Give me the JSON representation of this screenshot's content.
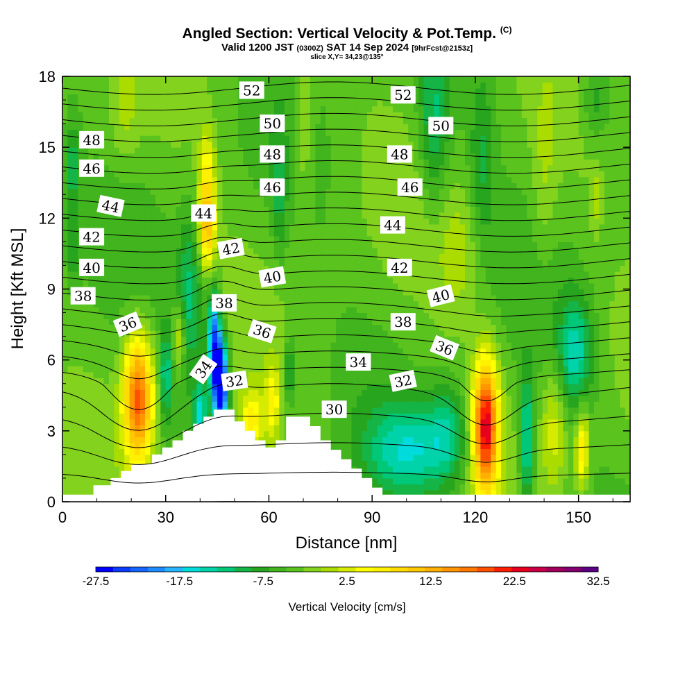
{
  "header": {
    "title": "Angled Section: Vertical Velocity & Pot.Temp.",
    "title_mark": "(C)",
    "valid_prefix": "Valid 1200 JST",
    "valid_utc": "(0300Z)",
    "valid_date": "SAT 14 Sep 2024",
    "valid_fcst": "[9hrFcst@2153z]",
    "slice": "slice X,Y= 34,23@135°"
  },
  "chart_data": {
    "type": "heatmap",
    "xlabel": "Distance [nm]",
    "ylabel": "Height [Kft MSL]",
    "xlim": [
      0,
      165
    ],
    "ylim": [
      0,
      18
    ],
    "xticks": [
      0,
      30,
      60,
      90,
      120,
      150
    ],
    "yticks": [
      0,
      3,
      6,
      9,
      12,
      15,
      18
    ],
    "colorbar": {
      "title": "Vertical Velocity [cm/s]",
      "tick_labels": [
        "-27.5",
        "-17.5",
        "-7.5",
        "2.5",
        "12.5",
        "22.5",
        "32.5"
      ],
      "min": -27.5,
      "max": 32.5,
      "step": 2.5,
      "colors": [
        "#0000ff",
        "#0a3cff",
        "#1466ff",
        "#1e8cff",
        "#28b4ff",
        "#00dcdc",
        "#00d2aa",
        "#00c878",
        "#14b446",
        "#28a51e",
        "#41b41e",
        "#5ac31e",
        "#82d21e",
        "#aadc00",
        "#d7eb00",
        "#ffff00",
        "#fff000",
        "#ffdc00",
        "#ffc800",
        "#ffaf00",
        "#ff9600",
        "#ff7800",
        "#ff5000",
        "#ff1e00",
        "#e6001e",
        "#c80046",
        "#a0005a",
        "#82006e",
        "#5a0082"
      ]
    },
    "terrain_kft": [
      [
        0,
        0.3
      ],
      [
        9,
        0.3
      ],
      [
        9,
        0.7
      ],
      [
        14,
        0.7
      ],
      [
        14,
        1
      ],
      [
        17,
        1
      ],
      [
        17,
        1.3
      ],
      [
        20,
        1.3
      ],
      [
        20,
        1.6
      ],
      [
        26,
        1.6
      ],
      [
        26,
        2
      ],
      [
        29,
        2
      ],
      [
        29,
        2.3
      ],
      [
        32,
        2.3
      ],
      [
        32,
        2.6
      ],
      [
        35,
        2.6
      ],
      [
        35,
        3
      ],
      [
        38,
        3
      ],
      [
        38,
        3.3
      ],
      [
        41,
        3.3
      ],
      [
        41,
        3.6
      ],
      [
        44,
        3.6
      ],
      [
        44,
        3.9
      ],
      [
        50,
        3.9
      ],
      [
        50,
        3.4
      ],
      [
        53,
        3.4
      ],
      [
        53,
        3
      ],
      [
        56,
        3
      ],
      [
        56,
        2.6
      ],
      [
        59,
        2.6
      ],
      [
        59,
        2.3
      ],
      [
        62,
        2.3
      ],
      [
        62,
        2.6
      ],
      [
        65,
        2.6
      ],
      [
        65,
        3
      ],
      [
        65,
        3.6
      ],
      [
        72,
        3.6
      ],
      [
        72,
        3.2
      ],
      [
        75,
        3.2
      ],
      [
        75,
        2.6
      ],
      [
        78,
        2.6
      ],
      [
        78,
        2.2
      ],
      [
        81,
        2.2
      ],
      [
        81,
        1.8
      ],
      [
        84,
        1.8
      ],
      [
        84,
        1.4
      ],
      [
        87,
        1.4
      ],
      [
        87,
        1
      ],
      [
        90,
        1
      ],
      [
        90,
        0.6
      ],
      [
        93,
        0.6
      ],
      [
        93,
        0.3
      ],
      [
        165,
        0.3
      ]
    ],
    "velocity_cells": [
      {
        "x": 22,
        "y": 4.4,
        "sx": 3,
        "sy": 1.9,
        "v": 27
      },
      {
        "x": 123,
        "y": 3.2,
        "sx": 2.6,
        "sy": 2.0,
        "v": 32
      },
      {
        "x": 46,
        "y": 5.0,
        "sx": 1.5,
        "sy": 1.3,
        "v": -34
      },
      {
        "x": 44,
        "y": 6.8,
        "sx": 1.4,
        "sy": 1.5,
        "v": -22
      },
      {
        "x": 42,
        "y": 11.5,
        "sx": 1.7,
        "sy": 1.2,
        "v": 16
      },
      {
        "x": 42,
        "y": 13.8,
        "sx": 1.7,
        "sy": 1.4,
        "v": 11
      },
      {
        "x": 37,
        "y": 8.5,
        "sx": 2.5,
        "sy": 2.5,
        "v": -10
      },
      {
        "x": 34,
        "y": 7.0,
        "sx": 1.4,
        "sy": 1.0,
        "v": 9
      },
      {
        "x": 30,
        "y": 5.3,
        "sx": 1.2,
        "sy": 1.4,
        "v": -11
      },
      {
        "x": 40,
        "y": 3.8,
        "sx": 1.3,
        "sy": 0.9,
        "v": -14
      },
      {
        "x": 55,
        "y": 3.4,
        "sx": 2.4,
        "sy": 0.9,
        "v": 12
      },
      {
        "x": 61,
        "y": 4.2,
        "sx": 1.4,
        "sy": 1.1,
        "v": 10
      },
      {
        "x": 66,
        "y": 5.5,
        "sx": 1.0,
        "sy": 1.0,
        "v": -10
      },
      {
        "x": 101,
        "y": 2.2,
        "sx": 9,
        "sy": 1.4,
        "v": -12
      },
      {
        "x": 112,
        "y": 3.0,
        "sx": 4,
        "sy": 1.5,
        "v": -8
      },
      {
        "x": 135,
        "y": 2.5,
        "sx": 1.5,
        "sy": 2.0,
        "v": -14
      },
      {
        "x": 143,
        "y": 3.2,
        "sx": 2.5,
        "sy": 1.8,
        "v": 8
      },
      {
        "x": 151,
        "y": 2.3,
        "sx": 1.4,
        "sy": 1.2,
        "v": 14
      },
      {
        "x": 149,
        "y": 6.3,
        "sx": 3.5,
        "sy": 1.7,
        "v": -12
      },
      {
        "x": 3,
        "y": 14.2,
        "sx": 1.5,
        "sy": 1.2,
        "v": -8
      },
      {
        "x": 3,
        "y": 10.8,
        "sx": 1.5,
        "sy": 1.2,
        "v": -6
      },
      {
        "x": 70,
        "y": 16,
        "sx": 2,
        "sy": 2.2,
        "v": 6
      },
      {
        "x": 63,
        "y": 13,
        "sx": 1.5,
        "sy": 2.0,
        "v": -6
      },
      {
        "x": 108,
        "y": 16,
        "sx": 3,
        "sy": 2.5,
        "v": -9
      },
      {
        "x": 122,
        "y": 14.5,
        "sx": 2.5,
        "sy": 2.5,
        "v": -6
      },
      {
        "x": 140,
        "y": 13.5,
        "sx": 2.5,
        "sy": 2.5,
        "v": 4
      },
      {
        "x": 155,
        "y": 12.8,
        "sx": 1,
        "sy": 0.9,
        "v": 5
      },
      {
        "x": 155,
        "y": 17.0,
        "sx": 3,
        "sy": 1.2,
        "v": -6
      },
      {
        "x": 115,
        "y": 10.5,
        "sx": 4,
        "sy": 1.8,
        "v": 5
      },
      {
        "x": 18,
        "y": 16.5,
        "sx": 3,
        "sy": 1.6,
        "v": 4
      }
    ],
    "theta_levels": [
      30,
      31,
      32,
      33,
      34,
      35,
      36,
      37,
      38,
      39,
      40,
      41,
      42,
      43,
      44,
      45,
      46,
      47,
      48,
      49,
      50,
      51,
      52,
      53
    ],
    "theta_labels": [
      {
        "text": "52",
        "x": 55,
        "y": 17.4,
        "r": 0
      },
      {
        "text": "52",
        "x": 99,
        "y": 17.2,
        "r": 0
      },
      {
        "text": "50",
        "x": 61,
        "y": 16.0,
        "r": 0
      },
      {
        "text": "50",
        "x": 110,
        "y": 15.9,
        "r": 0
      },
      {
        "text": "48",
        "x": 8.5,
        "y": 15.3,
        "r": 0
      },
      {
        "text": "48",
        "x": 61,
        "y": 14.7,
        "r": 0
      },
      {
        "text": "48",
        "x": 98,
        "y": 14.7,
        "r": 0
      },
      {
        "text": "46",
        "x": 8.5,
        "y": 14.1,
        "r": 0
      },
      {
        "text": "46",
        "x": 61,
        "y": 13.3,
        "r": 0
      },
      {
        "text": "46",
        "x": 101,
        "y": 13.3,
        "r": 0
      },
      {
        "text": "44",
        "x": 14,
        "y": 12.5,
        "r": 12
      },
      {
        "text": "44",
        "x": 41,
        "y": 12.2,
        "r": 0
      },
      {
        "text": "44",
        "x": 96,
        "y": 11.7,
        "r": 0
      },
      {
        "text": "42",
        "x": 8.5,
        "y": 11.2,
        "r": 0
      },
      {
        "text": "42",
        "x": 49,
        "y": 10.7,
        "r": -10
      },
      {
        "text": "42",
        "x": 98,
        "y": 9.9,
        "r": 0
      },
      {
        "text": "40",
        "x": 8.5,
        "y": 9.9,
        "r": 0
      },
      {
        "text": "40",
        "x": 61,
        "y": 9.5,
        "r": -10
      },
      {
        "text": "40",
        "x": 110,
        "y": 8.7,
        "r": -14
      },
      {
        "text": "38",
        "x": 6,
        "y": 8.7,
        "r": 0
      },
      {
        "text": "38",
        "x": 47,
        "y": 8.4,
        "r": 0
      },
      {
        "text": "38",
        "x": 99,
        "y": 7.6,
        "r": 0
      },
      {
        "text": "36",
        "x": 19,
        "y": 7.5,
        "r": -22
      },
      {
        "text": "36",
        "x": 58,
        "y": 7.2,
        "r": 18
      },
      {
        "text": "36",
        "x": 111,
        "y": 6.5,
        "r": 22
      },
      {
        "text": "34",
        "x": 86,
        "y": 5.9,
        "r": 0
      },
      {
        "text": "34",
        "x": 41,
        "y": 5.6,
        "r": -55
      },
      {
        "text": "32",
        "x": 50,
        "y": 5.1,
        "r": -8
      },
      {
        "text": "32",
        "x": 99,
        "y": 5.1,
        "r": -12
      },
      {
        "text": "30",
        "x": 79,
        "y": 3.9,
        "r": 0
      }
    ]
  }
}
